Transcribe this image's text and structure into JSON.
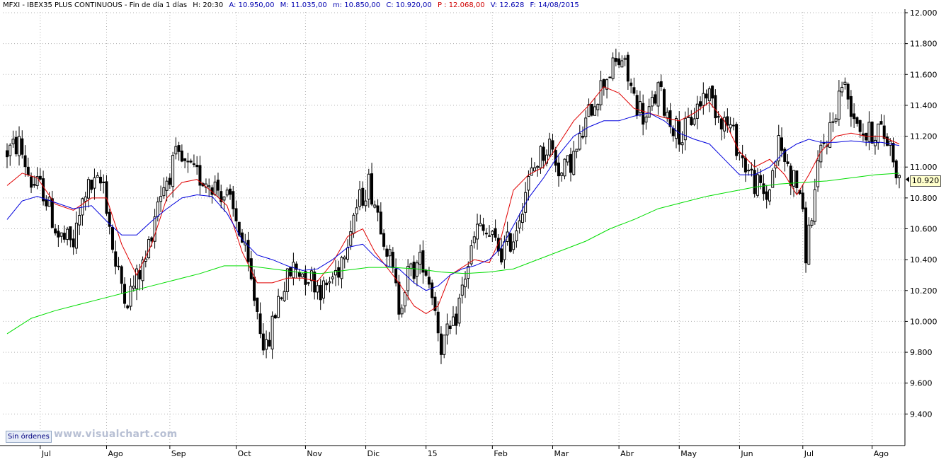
{
  "header": {
    "symbol": "MFXI - IBEX35 PLUS CONTINUOUS - Fin de día 1 días",
    "hour": "H: 20:30",
    "open": "A: 10.950,00",
    "high": "M: 11.035,00",
    "low": "m: 10.850,00",
    "close": "C: 10.920,00",
    "prev": "P : 12.068,00",
    "volume": "V: 12.628",
    "date": "F: 14/08/2015"
  },
  "status_button": "Sin órdenes",
  "watermark": "www.visualchart.com",
  "last_price_label": "10.920",
  "colors": {
    "candles": "#000000",
    "ma_red": "#e00000",
    "ma_blue": "#0000dd",
    "ma_green": "#00dd00",
    "grid": "#b0b0b0",
    "axis": "#000000"
  },
  "chart_data": {
    "type": "candlestick",
    "title": "MFXI - IBEX35 PLUS CONTINUOUS",
    "xlabel": "",
    "ylabel": "",
    "ylim": [
      9200,
      12000
    ],
    "y_ticks": [
      9400,
      9600,
      9800,
      10000,
      10200,
      10400,
      10600,
      10800,
      11000,
      11200,
      11400,
      11600,
      11800,
      12000
    ],
    "y_tick_labels": [
      "9.400",
      "9.600",
      "9.800",
      "10.000",
      "10.200",
      "10.400",
      "10.600",
      "10.800",
      "11.000",
      "11.200",
      "11.400",
      "11.600",
      "11.800",
      "12.000"
    ],
    "grid": true,
    "months": [
      {
        "label": "Jul",
        "day": 11
      },
      {
        "label": "Ago",
        "day": 33
      },
      {
        "label": "Sep",
        "day": 54
      },
      {
        "label": "Oct",
        "day": 76
      },
      {
        "label": "Nov",
        "day": 99
      },
      {
        "label": "Dic",
        "day": 119
      },
      {
        "label": "15",
        "day": 139
      },
      {
        "label": "Feb",
        "day": 161
      },
      {
        "label": "Mar",
        "day": 181
      },
      {
        "label": "Abr",
        "day": 203
      },
      {
        "label": "May",
        "day": 223
      },
      {
        "label": "Jun",
        "day": 243
      },
      {
        "label": "Jul",
        "day": 264
      },
      {
        "label": "Ago",
        "day": 287
      }
    ],
    "trend_close": [
      [
        0,
        11100
      ],
      [
        4,
        11150
      ],
      [
        8,
        10900
      ],
      [
        12,
        10850
      ],
      [
        17,
        10550
      ],
      [
        22,
        10500
      ],
      [
        26,
        10850
      ],
      [
        32,
        10900
      ],
      [
        36,
        10350
      ],
      [
        40,
        10150
      ],
      [
        46,
        10400
      ],
      [
        50,
        10800
      ],
      [
        56,
        11050
      ],
      [
        62,
        10950
      ],
      [
        68,
        10900
      ],
      [
        73,
        10800
      ],
      [
        77,
        10600
      ],
      [
        81,
        10250
      ],
      [
        86,
        9800
      ],
      [
        90,
        10150
      ],
      [
        95,
        10350
      ],
      [
        100,
        10300
      ],
      [
        105,
        10200
      ],
      [
        110,
        10350
      ],
      [
        115,
        10700
      ],
      [
        120,
        10900
      ],
      [
        124,
        10650
      ],
      [
        127,
        10400
      ],
      [
        130,
        10100
      ],
      [
        133,
        10300
      ],
      [
        138,
        10400
      ],
      [
        141,
        10200
      ],
      [
        144,
        9850
      ],
      [
        148,
        9950
      ],
      [
        152,
        10300
      ],
      [
        156,
        10600
      ],
      [
        160,
        10550
      ],
      [
        164,
        10450
      ],
      [
        168,
        10550
      ],
      [
        172,
        10850
      ],
      [
        176,
        11050
      ],
      [
        180,
        11150
      ],
      [
        184,
        10950
      ],
      [
        189,
        11100
      ],
      [
        194,
        11400
      ],
      [
        199,
        11600
      ],
      [
        204,
        11700
      ],
      [
        208,
        11450
      ],
      [
        212,
        11300
      ],
      [
        216,
        11500
      ],
      [
        220,
        11300
      ],
      [
        224,
        11200
      ],
      [
        228,
        11350
      ],
      [
        232,
        11500
      ],
      [
        236,
        11350
      ],
      [
        240,
        11250
      ],
      [
        244,
        11050
      ],
      [
        248,
        10900
      ],
      [
        252,
        10800
      ],
      [
        256,
        11150
      ],
      [
        260,
        10950
      ],
      [
        263,
        10850
      ],
      [
        265,
        10450
      ],
      [
        267,
        10700
      ],
      [
        270,
        11100
      ],
      [
        274,
        11300
      ],
      [
        277,
        11550
      ],
      [
        281,
        11350
      ],
      [
        285,
        11200
      ],
      [
        289,
        11250
      ],
      [
        293,
        11150
      ],
      [
        296,
        10920
      ]
    ],
    "series": [
      {
        "name": "",
        "color": "#e00000",
        "points": [
          [
            0,
            10880
          ],
          [
            5,
            10960
          ],
          [
            10,
            10930
          ],
          [
            16,
            10760
          ],
          [
            22,
            10720
          ],
          [
            28,
            10800
          ],
          [
            33,
            10800
          ],
          [
            38,
            10500
          ],
          [
            43,
            10300
          ],
          [
            48,
            10500
          ],
          [
            53,
            10800
          ],
          [
            58,
            10900
          ],
          [
            63,
            10920
          ],
          [
            68,
            10840
          ],
          [
            73,
            10750
          ],
          [
            78,
            10450
          ],
          [
            83,
            10250
          ],
          [
            88,
            10250
          ],
          [
            93,
            10280
          ],
          [
            98,
            10280
          ],
          [
            103,
            10260
          ],
          [
            108,
            10380
          ],
          [
            113,
            10550
          ],
          [
            118,
            10600
          ],
          [
            122,
            10450
          ],
          [
            126,
            10350
          ],
          [
            130,
            10250
          ],
          [
            135,
            10100
          ],
          [
            139,
            10050
          ],
          [
            143,
            10100
          ],
          [
            147,
            10300
          ],
          [
            151,
            10350
          ],
          [
            155,
            10400
          ],
          [
            160,
            10380
          ],
          [
            164,
            10550
          ],
          [
            168,
            10850
          ],
          [
            173,
            10950
          ],
          [
            178,
            11000
          ],
          [
            183,
            11150
          ],
          [
            188,
            11300
          ],
          [
            193,
            11400
          ],
          [
            198,
            11520
          ],
          [
            203,
            11480
          ],
          [
            208,
            11380
          ],
          [
            213,
            11350
          ],
          [
            218,
            11320
          ],
          [
            223,
            11300
          ],
          [
            228,
            11350
          ],
          [
            233,
            11420
          ],
          [
            238,
            11300
          ],
          [
            243,
            11100
          ],
          [
            248,
            11000
          ],
          [
            253,
            11050
          ],
          [
            258,
            10950
          ],
          [
            262,
            10820
          ],
          [
            266,
            10950
          ],
          [
            270,
            11100
          ],
          [
            275,
            11200
          ],
          [
            280,
            11220
          ],
          [
            285,
            11200
          ],
          [
            290,
            11200
          ],
          [
            296,
            11150
          ]
        ]
      },
      {
        "name": "",
        "color": "#0000dd",
        "points": [
          [
            0,
            10660
          ],
          [
            5,
            10780
          ],
          [
            10,
            10810
          ],
          [
            16,
            10770
          ],
          [
            22,
            10730
          ],
          [
            28,
            10750
          ],
          [
            33,
            10650
          ],
          [
            38,
            10560
          ],
          [
            43,
            10560
          ],
          [
            48,
            10650
          ],
          [
            53,
            10730
          ],
          [
            58,
            10800
          ],
          [
            63,
            10820
          ],
          [
            68,
            10810
          ],
          [
            73,
            10700
          ],
          [
            78,
            10530
          ],
          [
            83,
            10430
          ],
          [
            88,
            10400
          ],
          [
            93,
            10360
          ],
          [
            98,
            10330
          ],
          [
            103,
            10340
          ],
          [
            108,
            10400
          ],
          [
            113,
            10480
          ],
          [
            118,
            10500
          ],
          [
            122,
            10420
          ],
          [
            126,
            10360
          ],
          [
            130,
            10340
          ],
          [
            135,
            10250
          ],
          [
            139,
            10200
          ],
          [
            143,
            10230
          ],
          [
            147,
            10300
          ],
          [
            151,
            10340
          ],
          [
            155,
            10360
          ],
          [
            160,
            10400
          ],
          [
            164,
            10480
          ],
          [
            168,
            10620
          ],
          [
            173,
            10800
          ],
          [
            178,
            10930
          ],
          [
            183,
            11080
          ],
          [
            188,
            11200
          ],
          [
            193,
            11260
          ],
          [
            198,
            11300
          ],
          [
            203,
            11300
          ],
          [
            208,
            11330
          ],
          [
            213,
            11350
          ],
          [
            218,
            11300
          ],
          [
            223,
            11220
          ],
          [
            228,
            11180
          ],
          [
            233,
            11150
          ],
          [
            238,
            11050
          ],
          [
            243,
            10950
          ],
          [
            248,
            10950
          ],
          [
            253,
            11000
          ],
          [
            258,
            11100
          ],
          [
            262,
            11150
          ],
          [
            266,
            11180
          ],
          [
            270,
            11160
          ],
          [
            275,
            11160
          ],
          [
            280,
            11170
          ],
          [
            285,
            11160
          ],
          [
            290,
            11160
          ],
          [
            296,
            11140
          ]
        ]
      },
      {
        "name": "",
        "color": "#00dd00",
        "points": [
          [
            0,
            9920
          ],
          [
            8,
            10020
          ],
          [
            16,
            10070
          ],
          [
            24,
            10110
          ],
          [
            32,
            10150
          ],
          [
            40,
            10190
          ],
          [
            48,
            10230
          ],
          [
            56,
            10270
          ],
          [
            64,
            10310
          ],
          [
            72,
            10360
          ],
          [
            80,
            10360
          ],
          [
            88,
            10340
          ],
          [
            96,
            10320
          ],
          [
            104,
            10310
          ],
          [
            112,
            10330
          ],
          [
            120,
            10350
          ],
          [
            128,
            10350
          ],
          [
            136,
            10340
          ],
          [
            144,
            10320
          ],
          [
            152,
            10310
          ],
          [
            160,
            10320
          ],
          [
            168,
            10340
          ],
          [
            176,
            10400
          ],
          [
            184,
            10460
          ],
          [
            192,
            10520
          ],
          [
            200,
            10600
          ],
          [
            208,
            10660
          ],
          [
            216,
            10730
          ],
          [
            224,
            10770
          ],
          [
            232,
            10810
          ],
          [
            240,
            10840
          ],
          [
            248,
            10870
          ],
          [
            256,
            10890
          ],
          [
            264,
            10900
          ],
          [
            272,
            10910
          ],
          [
            280,
            10930
          ],
          [
            288,
            10950
          ],
          [
            296,
            10960
          ]
        ]
      }
    ]
  }
}
